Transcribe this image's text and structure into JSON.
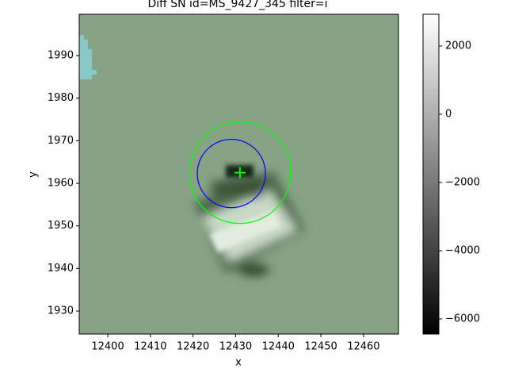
{
  "chart_data": {
    "type": "image",
    "title": "Diff SN id=MS_9427_345 filter=i",
    "x_label": "x",
    "y_label": "y",
    "xlim": [
      12393.3,
      12468.2
    ],
    "ylim": [
      1924.6,
      1999.7
    ],
    "xticks": [
      12400,
      12410,
      12420,
      12430,
      12440,
      12450,
      12460
    ],
    "yticks": [
      1930,
      1940,
      1950,
      1960,
      1970,
      1980,
      1990
    ],
    "colorbar": {
      "lim": [
        -6442,
        2930
      ],
      "ticks": [
        {
          "value": -6000,
          "label": "−6000"
        },
        {
          "value": -4000,
          "label": "−4000"
        },
        {
          "value": -2000,
          "label": "−2000"
        },
        0,
        2000
      ]
    },
    "circles": [
      {
        "x": 12431,
        "y": 1962.5,
        "radius": 11.9,
        "color": "#00ff00"
      },
      {
        "x": 12429,
        "y": 1962.3,
        "radius": 8,
        "color": "#0000ff"
      }
    ],
    "marker": {
      "x": 12431,
      "y": 1962.5,
      "color": "#00ff00"
    }
  }
}
